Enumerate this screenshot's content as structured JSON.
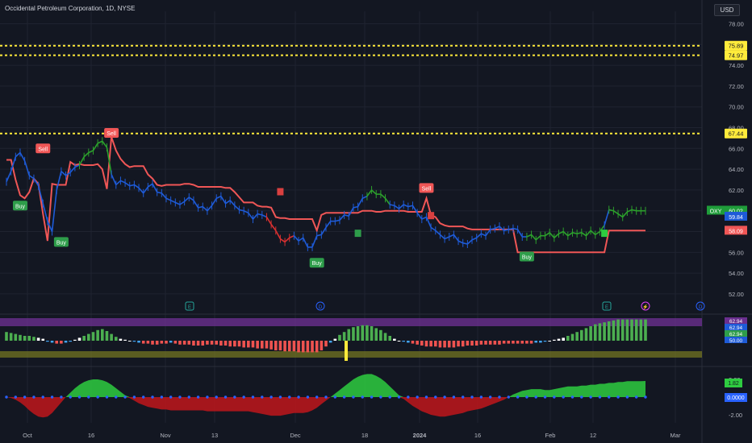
{
  "header": {
    "title": "Occidental Petroleum Corporation, 1D, NYSE",
    "currency": "USD"
  },
  "colors": {
    "background": "#131722",
    "grid": "#1f2330",
    "axis_text": "#b2b5be",
    "price_line_up": "#1e5bd8",
    "price_green": "#2ca02c",
    "price_red": "#d93030",
    "stop_line": "#f05656",
    "level_line": "#ffeb3b",
    "oscillator_band": "#6a2f8f",
    "oscillator_base": "#8a8a22",
    "momentum_green": "#2ecc40",
    "momentum_red": "#c0161b",
    "zero_dots": "#2962ff"
  },
  "chart_data": [
    {
      "type": "line",
      "title": "",
      "symbol": "OXY",
      "x_tick_labels": [
        "Oct",
        "16",
        "Nov",
        "13",
        "Dec",
        "18",
        "2024",
        "16",
        "Feb",
        "12",
        "Mar"
      ],
      "ylim": [
        50.6,
        79.2
      ],
      "y_tick_labels": [
        "52.00",
        "54.00",
        "56.00",
        "58.00",
        "60.00",
        "62.00",
        "64.00",
        "66.00",
        "68.00",
        "70.00",
        "72.00",
        "74.00",
        "76.00",
        "78.00"
      ],
      "horizontal_levels": [
        {
          "label": "75.89",
          "value": 75.89
        },
        {
          "label": "74.97",
          "value": 74.97
        },
        {
          "label": "67.44",
          "value": 67.44
        }
      ],
      "series": [
        {
          "name": "OXY",
          "x": [
            0,
            1,
            2,
            3,
            4,
            5,
            6,
            7,
            8,
            9,
            10,
            11,
            12,
            13,
            14,
            15,
            16,
            17,
            18,
            19,
            20,
            21,
            22,
            23,
            24,
            25,
            26,
            27,
            28,
            29,
            30,
            31,
            32,
            33,
            34,
            35,
            36,
            37,
            38,
            39,
            40,
            41,
            42,
            43,
            44,
            45,
            46,
            47,
            48,
            49,
            50,
            51,
            52,
            53,
            54,
            55,
            56,
            57,
            58,
            59,
            60,
            61,
            62,
            63,
            64,
            65,
            66,
            67,
            68,
            69,
            70,
            71,
            72,
            73,
            74,
            75,
            76,
            77,
            78,
            79,
            80,
            81,
            82,
            83,
            84,
            85,
            86,
            87,
            88,
            89,
            90,
            91,
            92,
            93,
            94,
            95,
            96,
            97,
            98,
            99,
            100,
            101,
            102,
            103,
            104,
            105,
            106,
            107,
            108,
            109,
            110,
            111,
            112,
            113,
            114,
            115,
            116,
            117,
            118,
            119,
            120,
            121,
            122,
            123,
            124,
            125,
            126,
            127,
            128,
            129,
            130,
            131,
            132,
            133,
            134,
            135,
            136,
            137,
            138,
            139,
            140
          ],
          "values": [
            62.8,
            63.8,
            65.2,
            65.6,
            64.8,
            63.4,
            63.1,
            62.4,
            60.7,
            59.0,
            58.0,
            62.0,
            63.8,
            63.4,
            63.7,
            64.2,
            64.4,
            65.2,
            65.6,
            65.8,
            66.5,
            66.7,
            66.1,
            63.5,
            62.5,
            62.9,
            62.7,
            62.4,
            62.5,
            62.2,
            61.7,
            62.3,
            62.6,
            61.8,
            61.7,
            61.2,
            61.0,
            60.8,
            60.6,
            60.9,
            61.3,
            61.0,
            60.3,
            60.4,
            60.0,
            60.5,
            61.2,
            61.4,
            60.7,
            61.0,
            60.5,
            60.1,
            60.0,
            59.8,
            59.2,
            59.7,
            59.6,
            59.4,
            58.7,
            58.1,
            57.3,
            57.0,
            57.4,
            57.6,
            57.1,
            57.4,
            56.5,
            56.5,
            57.6,
            57.7,
            58.4,
            59.0,
            59.0,
            59.1,
            59.6,
            59.5,
            60.3,
            60.4,
            61.2,
            61.4,
            62.0,
            61.6,
            61.6,
            61.2,
            60.6,
            60.5,
            60.2,
            60.6,
            60.4,
            60.5,
            59.8,
            59.2,
            59.4,
            58.4,
            58.1,
            57.7,
            57.3,
            57.5,
            57.7,
            57.1,
            56.9,
            56.8,
            57.2,
            57.4,
            57.8,
            57.6,
            58.2,
            58.3,
            58.5,
            58.1,
            58.2,
            58.3,
            58.2,
            57.5,
            57.5,
            57.7,
            57.2,
            57.6,
            57.6,
            57.9,
            57.4,
            57.8,
            58.0,
            57.6,
            57.9,
            57.8,
            57.9,
            57.6,
            58.1,
            57.7,
            58.0,
            58.6,
            60.1,
            60.0,
            59.7,
            59.4,
            59.9,
            60.1,
            60.0,
            60.0,
            60.0
          ]
        },
        {
          "name": "",
          "values": [
            64.9,
            64.9,
            63.0,
            61.5,
            61.2,
            61.8,
            63.1,
            62.6,
            59.7,
            57.1,
            62.6,
            62.5,
            62.5,
            62.5,
            64.7,
            64.4,
            64.5,
            64.4,
            64.4,
            64.4,
            64.5,
            64.0,
            62.1,
            67.1,
            65.8,
            65.0,
            64.5,
            64.2,
            64.3,
            64.3,
            64.3,
            63.5,
            63.1,
            62.5,
            62.4,
            62.5,
            62.5,
            62.5,
            62.5,
            62.6,
            62.6,
            62.5,
            62.3,
            62.3,
            62.3,
            62.3,
            62.3,
            62.3,
            62.2,
            62.2,
            61.8,
            61.3,
            60.8,
            60.8,
            60.8,
            60.5,
            60.4,
            60.4,
            60.3,
            59.4,
            59.3,
            59.3,
            59.2,
            59.2,
            59.2,
            59.2,
            59.2,
            59.2,
            58.1,
            59.6,
            59.8,
            59.8,
            59.8,
            59.8,
            59.8,
            59.8,
            59.8,
            59.8,
            60.0,
            60.0,
            60.0,
            59.9,
            59.9,
            60.0,
            60.0,
            60.0,
            60.0,
            60.0,
            59.9,
            59.9,
            59.9,
            59.9,
            61.2,
            59.6,
            59.4,
            58.8,
            58.6,
            58.5,
            58.5,
            58.5,
            58.5,
            58.3,
            58.2,
            58.2,
            58.2,
            58.2,
            58.2,
            58.2,
            58.2,
            58.2,
            58.2,
            58.2,
            56.0,
            56.0,
            56.0,
            56.0,
            56.0,
            56.0,
            56.0,
            56.0,
            56.0,
            56.0,
            56.0,
            56.0,
            56.0,
            56.0,
            56.0,
            56.0,
            56.0,
            56.0,
            56.0,
            56.0,
            58.1,
            58.1,
            58.1,
            58.1,
            58.1,
            58.1,
            58.1,
            58.1,
            58.1
          ]
        }
      ],
      "last_price_labels": [
        {
          "label": "OXY",
          "value": "60.02"
        },
        {
          "value": "59.84"
        },
        {
          "value": "58.09"
        }
      ],
      "signals": [
        {
          "label": "Buy",
          "x": 3,
          "y": 60.5
        },
        {
          "label": "Sell",
          "x": 8,
          "y": 66.0
        },
        {
          "label": "Buy",
          "x": 12,
          "y": 57.0
        },
        {
          "label": "Sell",
          "x": 23,
          "y": 67.5
        },
        {
          "label": "Buy",
          "x": 68,
          "y": 55.0
        },
        {
          "label": "Sell",
          "x": 92,
          "y": 62.2
        },
        {
          "label": "Buy",
          "x": 114,
          "y": 55.6
        }
      ],
      "event_markers": [
        "E",
        "D",
        "E",
        "⚡",
        "D"
      ]
    },
    {
      "type": "bar",
      "title": "",
      "right_labels": [
        "62.94",
        "62.94",
        "62.94",
        "50.00"
      ],
      "values": [
        9,
        8,
        7,
        6,
        5,
        5,
        4,
        3,
        2,
        -1,
        -2,
        -3,
        -3,
        -2,
        -1,
        1,
        3,
        5,
        7,
        9,
        11,
        12,
        10,
        7,
        4,
        2,
        1,
        0,
        -1,
        -2,
        -3,
        -3,
        -4,
        -4,
        -3,
        -3,
        -2,
        -3,
        -4,
        -4,
        -4,
        -5,
        -5,
        -5,
        -4,
        -4,
        -4,
        -5,
        -5,
        -6,
        -6,
        -6,
        -7,
        -7,
        -7,
        -8,
        -8,
        -8,
        -9,
        -10,
        -10,
        -11,
        -11,
        -11,
        -12,
        -12,
        -12,
        -12,
        -12,
        -10,
        -6,
        -2,
        2,
        6,
        9,
        12,
        14,
        15,
        16,
        16,
        15,
        13,
        11,
        8,
        5,
        2,
        0,
        -1,
        -2,
        -3,
        -4,
        -5,
        -6,
        -6,
        -6,
        -7,
        -7,
        -7,
        -7,
        -6,
        -6,
        -5,
        -5,
        -5,
        -4,
        -4,
        -4,
        -4,
        -4,
        -3,
        -3,
        -3,
        -3,
        -3,
        -3,
        -3,
        -2,
        -2,
        -1,
        0,
        1,
        2,
        3,
        5,
        7,
        9,
        11,
        13,
        15,
        17,
        18,
        19,
        20,
        21,
        22,
        22,
        22,
        22,
        22,
        22,
        22
      ]
    },
    {
      "type": "area",
      "title": "",
      "y_tick_labels": [
        "2.00",
        "0.0000",
        "-2.00"
      ],
      "last_values": [
        "1.82",
        "0.0000"
      ],
      "values": [
        0,
        -0.1,
        -0.3,
        -0.6,
        -1.0,
        -1.5,
        -1.9,
        -2.2,
        -2.3,
        -2.2,
        -1.8,
        -1.2,
        -0.6,
        0.0,
        0.5,
        1.0,
        1.4,
        1.7,
        1.9,
        2.0,
        2.0,
        1.9,
        1.7,
        1.4,
        1.0,
        0.6,
        0.2,
        -0.1,
        -0.4,
        -0.7,
        -0.9,
        -1.1,
        -1.2,
        -1.3,
        -1.4,
        -1.4,
        -1.5,
        -1.5,
        -1.5,
        -1.5,
        -1.5,
        -1.5,
        -1.5,
        -1.5,
        -1.6,
        -1.6,
        -1.6,
        -1.6,
        -1.6,
        -1.6,
        -1.6,
        -1.6,
        -1.6,
        -1.6,
        -1.7,
        -1.8,
        -1.9,
        -2.0,
        -2.1,
        -2.1,
        -2.1,
        -2.0,
        -1.9,
        -1.8,
        -1.8,
        -1.8,
        -1.7,
        -1.5,
        -1.2,
        -0.8,
        -0.4,
        0.0,
        0.4,
        0.8,
        1.2,
        1.6,
        2.0,
        2.3,
        2.5,
        2.6,
        2.6,
        2.4,
        2.1,
        1.7,
        1.2,
        0.7,
        0.2,
        -0.2,
        -0.6,
        -1.0,
        -1.3,
        -1.6,
        -1.8,
        -2.0,
        -2.1,
        -2.2,
        -2.2,
        -2.1,
        -2.0,
        -1.9,
        -1.8,
        -1.6,
        -1.5,
        -1.4,
        -1.3,
        -1.1,
        -0.9,
        -0.7,
        -0.5,
        -0.3,
        0.0,
        0.3,
        0.5,
        0.7,
        0.8,
        0.9,
        0.9,
        0.9,
        0.8,
        0.8,
        0.9,
        1.0,
        1.1,
        1.2,
        1.2,
        1.2,
        1.3,
        1.3,
        1.4,
        1.4,
        1.5,
        1.5,
        1.6,
        1.6,
        1.7,
        1.7,
        1.8,
        1.8,
        1.8,
        1.8,
        1.82
      ]
    }
  ]
}
